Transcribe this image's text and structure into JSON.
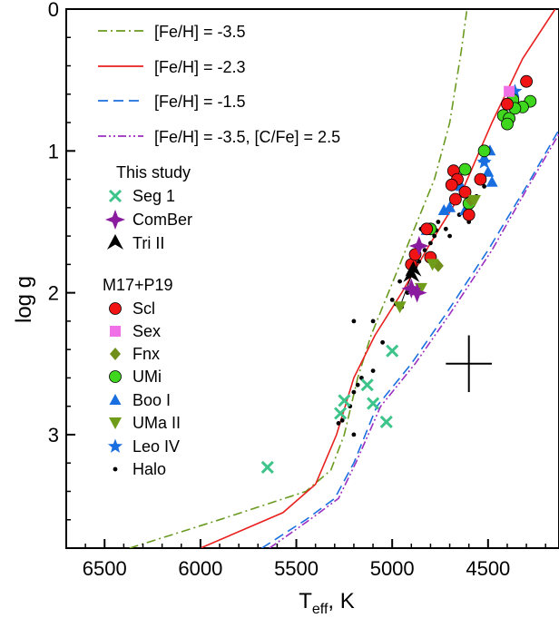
{
  "chart_data": {
    "type": "scatter",
    "xlabel_main": "T",
    "xlabel_sub": "eff",
    "xlabel_unit": ", K",
    "ylabel": "log g",
    "xlim": [
      6700,
      4130
    ],
    "ylim": [
      3.8,
      0
    ],
    "x_ticks": [
      6500,
      6000,
      5500,
      5000,
      4500
    ],
    "x_tick_labels": [
      "6500",
      "6000",
      "5500",
      "5000",
      "4500"
    ],
    "y_ticks": [
      0,
      1,
      2,
      3
    ],
    "y_tick_labels": [
      "0",
      "1",
      "2",
      "3"
    ],
    "lines": [
      {
        "name": "[Fe/H] = -3.5",
        "color": "#6a9a1f",
        "dash": "10,4,2,4",
        "points": [
          [
            6370,
            3.8
          ],
          [
            5900,
            3.6
          ],
          [
            5450,
            3.4
          ],
          [
            5320,
            3.25
          ],
          [
            5250,
            3.0
          ],
          [
            5180,
            2.6
          ],
          [
            5110,
            2.3
          ],
          [
            5020,
            2.0
          ],
          [
            4900,
            1.6
          ],
          [
            4780,
            1.2
          ],
          [
            4700,
            0.8
          ],
          [
            4640,
            0.3
          ],
          [
            4610,
            0.0
          ]
        ]
      },
      {
        "name": "[Fe/H] = -2.3",
        "color": "#e8201e",
        "dash": "",
        "points": [
          [
            6000,
            3.8
          ],
          [
            5570,
            3.55
          ],
          [
            5400,
            3.35
          ],
          [
            5290,
            3.0
          ],
          [
            5200,
            2.6
          ],
          [
            5090,
            2.3
          ],
          [
            4950,
            2.0
          ],
          [
            4800,
            1.65
          ],
          [
            4640,
            1.3
          ],
          [
            4480,
            0.8
          ],
          [
            4320,
            0.35
          ],
          [
            4150,
            0.0
          ]
        ]
      },
      {
        "name": "[Fe/H] = -1.5",
        "color": "#1a6fe0",
        "dash": "11,6",
        "points": [
          [
            5680,
            3.8
          ],
          [
            5450,
            3.6
          ],
          [
            5300,
            3.45
          ],
          [
            5200,
            3.2
          ],
          [
            5080,
            2.8
          ],
          [
            4900,
            2.5
          ],
          [
            4720,
            2.15
          ],
          [
            4500,
            1.7
          ],
          [
            4300,
            1.25
          ],
          [
            4130,
            0.85
          ]
        ]
      },
      {
        "name": "[Fe/H] = -3.5, [C/Fe] = 2.5",
        "color": "#9b2fc0",
        "dash": "9,3,2,3,2,3",
        "points": [
          [
            5640,
            3.8
          ],
          [
            5430,
            3.6
          ],
          [
            5280,
            3.45
          ],
          [
            5190,
            3.2
          ],
          [
            5060,
            2.8
          ],
          [
            4880,
            2.5
          ],
          [
            4700,
            2.15
          ],
          [
            4480,
            1.7
          ],
          [
            4290,
            1.25
          ],
          [
            4130,
            0.88
          ]
        ]
      }
    ],
    "legend_header_1": "This study",
    "legend_header_2": "M17+P19",
    "series": [
      {
        "name": "Seg 1",
        "marker": "x",
        "color": "#3dc48a",
        "points": [
          [
            5650,
            3.23
          ],
          [
            5270,
            2.85
          ],
          [
            5250,
            2.76
          ],
          [
            5130,
            2.65
          ],
          [
            5100,
            2.78
          ],
          [
            5000,
            2.41
          ],
          [
            5030,
            2.91
          ]
        ]
      },
      {
        "name": "ComBer",
        "marker": "star4",
        "color": "#8a1a9e",
        "points": [
          [
            4860,
            1.67
          ],
          [
            4900,
            1.97
          ],
          [
            4870,
            2.0
          ]
        ]
      },
      {
        "name": "Tri II",
        "marker": "tri",
        "color": "#000000",
        "points": [
          [
            4900,
            1.88
          ],
          [
            4890,
            1.84
          ]
        ]
      },
      {
        "name": "Scl",
        "marker": "circle",
        "color": "#f01414",
        "points": [
          [
            4300,
            0.51
          ],
          [
            4400,
            0.67
          ],
          [
            4680,
            1.14
          ],
          [
            4660,
            1.2
          ],
          [
            4690,
            1.24
          ],
          [
            4620,
            1.29
          ],
          [
            4670,
            1.34
          ],
          [
            4540,
            1.2
          ],
          [
            4600,
            1.45
          ],
          [
            4820,
            1.55
          ],
          [
            4800,
            1.75
          ],
          [
            4900,
            1.8
          ],
          [
            4880,
            1.73
          ]
        ]
      },
      {
        "name": "Sex",
        "marker": "square",
        "color": "#f070e8",
        "points": [
          [
            4390,
            0.58
          ]
        ]
      },
      {
        "name": "Fnx",
        "marker": "diamond",
        "color": "#6f8f1a",
        "points": [
          [
            4760,
            1.81
          ],
          [
            4590,
            1.35
          ]
        ]
      },
      {
        "name": "UMi",
        "marker": "circle",
        "color": "#3fd61e",
        "points": [
          [
            4370,
            0.64
          ],
          [
            4280,
            0.65
          ],
          [
            4320,
            0.69
          ],
          [
            4420,
            0.75
          ],
          [
            4390,
            0.77
          ],
          [
            4360,
            0.7
          ],
          [
            4400,
            0.81
          ],
          [
            4520,
            1.0
          ],
          [
            4620,
            1.13
          ],
          [
            4600,
            1.37
          ],
          [
            4800,
            1.55
          ]
        ]
      },
      {
        "name": "Boo I",
        "marker": "triangle",
        "color": "#1a6fe0",
        "points": [
          [
            4490,
            1.0
          ],
          [
            4500,
            1.15
          ],
          [
            4520,
            1.05
          ],
          [
            4480,
            1.22
          ],
          [
            4640,
            1.25
          ],
          [
            4700,
            1.4
          ],
          [
            4730,
            1.42
          ],
          [
            4620,
            1.42
          ],
          [
            4820,
            1.56
          ]
        ]
      },
      {
        "name": "UMa II",
        "marker": "tridown",
        "color": "#6f9d1a",
        "points": [
          [
            4960,
            2.1
          ],
          [
            4850,
            1.97
          ],
          [
            4570,
            1.35
          ],
          [
            4790,
            1.8
          ]
        ]
      },
      {
        "name": "Leo IV",
        "marker": "star",
        "color": "#1a6fe0",
        "points": [
          [
            4520,
            1.08
          ],
          [
            4360,
            0.58
          ]
        ]
      },
      {
        "name": "Halo",
        "marker": "dot",
        "color": "#000000",
        "points": [
          [
            4770,
            1.56
          ],
          [
            4760,
            1.5
          ],
          [
            4720,
            1.55
          ],
          [
            4850,
            1.55
          ],
          [
            4780,
            1.6
          ],
          [
            4800,
            1.65
          ],
          [
            4830,
            1.7
          ],
          [
            4860,
            1.78
          ],
          [
            4900,
            1.95
          ],
          [
            4920,
            2.0
          ],
          [
            4950,
            2.1
          ],
          [
            4980,
            2.08
          ],
          [
            5000,
            2.05
          ],
          [
            5100,
            2.2
          ],
          [
            5200,
            2.2
          ],
          [
            5050,
            2.35
          ],
          [
            5160,
            2.6
          ],
          [
            5180,
            2.65
          ],
          [
            5100,
            2.55
          ],
          [
            5200,
            2.7
          ],
          [
            5220,
            2.8
          ],
          [
            5260,
            2.9
          ],
          [
            5200,
            3.0
          ],
          [
            5280,
            2.92
          ],
          [
            4960,
            1.92
          ],
          [
            4880,
            1.82
          ],
          [
            4560,
            1.32
          ],
          [
            4520,
            1.25
          ],
          [
            4650,
            1.45
          ],
          [
            4600,
            1.5
          ],
          [
            4700,
            1.6
          ],
          [
            4580,
            1.35
          ]
        ]
      }
    ],
    "error_cross": {
      "x": 4600,
      "y": 2.5,
      "dx": 120,
      "dy": 0.2
    },
    "connectors": [
      [
        [
          4900,
          1.88
        ],
        [
          4960,
          2.1
        ]
      ],
      [
        [
          4890,
          1.84
        ],
        [
          4860,
          1.67
        ]
      ]
    ]
  }
}
